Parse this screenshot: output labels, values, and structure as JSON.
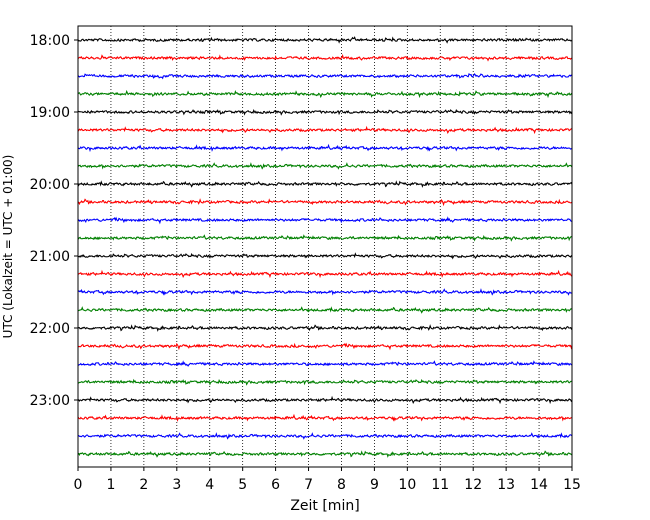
{
  "chart_data": {
    "type": "line",
    "title": "",
    "xlabel": "Zeit  [min]",
    "ylabel": "UTC (Lokalzeit = UTC + 01:00)",
    "xlim": [
      0,
      15
    ],
    "x_ticks": [
      "0",
      "1",
      "2",
      "3",
      "4",
      "5",
      "6",
      "7",
      "8",
      "9",
      "10",
      "11",
      "12",
      "13",
      "14",
      "15"
    ],
    "y_tick_labels": [
      "18:00",
      "19:00",
      "20:00",
      "21:00",
      "22:00",
      "23:00"
    ],
    "trace_start": "18:00",
    "trace_count": 24,
    "minutes_per_trace": 15,
    "trace_colors": [
      "#000000",
      "#ff0000",
      "#0000ff",
      "#008000"
    ],
    "grid": {
      "vertical": "dotted",
      "horizontal": "none"
    },
    "legend": "none"
  }
}
